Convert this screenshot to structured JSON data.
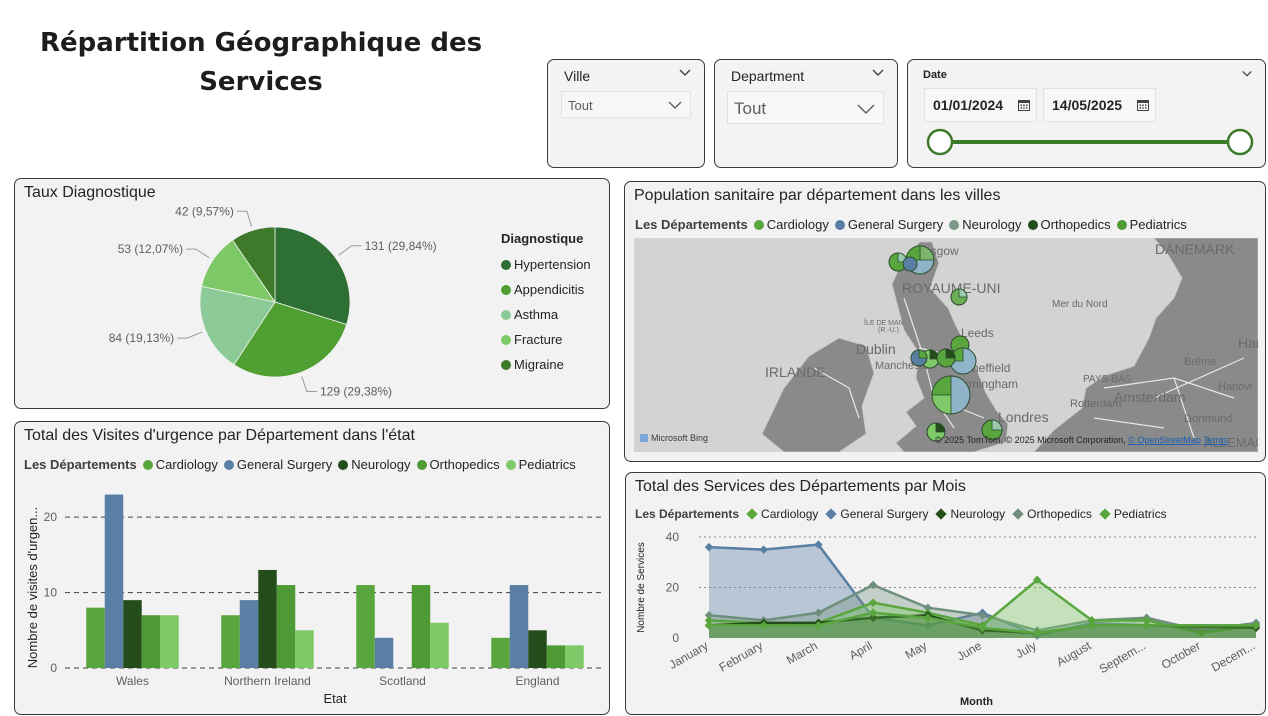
{
  "page": {
    "title": "Répartition Géographique des Services"
  },
  "slicers": {
    "ville": {
      "title": "Ville",
      "value": "Tout"
    },
    "department": {
      "title": "Department",
      "value": "Tout"
    },
    "date": {
      "title": "Date",
      "start": "01/01/2024",
      "end": "14/05/2025"
    }
  },
  "colors": {
    "cardiology": "#5aa63e",
    "general_surgery": "#5a7fa5",
    "neurology": "#254d1c",
    "orthopedics": "#4e9a35",
    "pediatrics": "#7fc968",
    "pie_hypertension": "#2e6f34",
    "pie_appendicitis": "#4f9f33",
    "pie_asthma": "#8ccb97",
    "pie_fracture": "#7dc867",
    "pie_migraine": "#3e7a2a"
  },
  "pie_card": {
    "title": "Taux Diagnostique",
    "legend_title": "Diagnostique",
    "legend": [
      "Hypertension",
      "Appendicitis",
      "Asthma",
      "Fracture",
      "Migraine"
    ]
  },
  "map_card": {
    "title": "Population sanitaire par département dans les villes",
    "legend_title": "Les Départements",
    "legend": [
      "Cardiology",
      "General Surgery",
      "Neurology",
      "Orthopedics",
      "Pediatrics"
    ],
    "places": {
      "danemark": "DANEMARK",
      "royaume_uni": "ROYAUME-UNI",
      "mer_du_nord": "Mer du Nord",
      "ile_de_man": "ÎLE DE MAN",
      "ile_de_man_sub": "(R.-U.)",
      "dublin": "Dublin",
      "irlande": "IRLANDE",
      "leeds": "Leeds",
      "sheffield": "Sheffield",
      "manchester": "Manchester",
      "birmingham": "Birmingham",
      "londres": "Londres",
      "glasgow": "Glasgow",
      "ham": "Ham",
      "breme": "Brême",
      "pays_bas": "PAYS-BAS",
      "amsterdam": "Amsterdam",
      "hanovre": "Hanovi",
      "rotterdam": "Rotterdam",
      "dortmund": "Dortmund",
      "allemagne": "ALLEMAGN"
    },
    "attribution": "© 2025 TomTom, © 2025 Microsoft Corporation, ",
    "attribution_osm": "© OpenStreetMap",
    "attribution_terms": "Terms",
    "bing": "Microsoft Bing"
  },
  "bar_card": {
    "title": "Total des Visites d'urgence par Département dans l'état",
    "legend_title": "Les Départements",
    "legend": [
      "Cardiology",
      "General Surgery",
      "Neurology",
      "Orthopedics",
      "Pediatrics"
    ],
    "ylabel": "Nombre de visites d'urgen...",
    "xlabel": "Etat",
    "yticks": [
      "0",
      "10",
      "20"
    ]
  },
  "line_card": {
    "title": "Total des Services des Départements par Mois",
    "legend_title": "Les Départements",
    "legend": [
      "Cardiology",
      "General Surgery",
      "Neurology",
      "Orthopedics",
      "Pediatrics"
    ],
    "ylabel": "Nombre de Services",
    "xlabel": "Month",
    "yticks": [
      "0",
      "20",
      "40"
    ]
  },
  "chart_data": [
    {
      "type": "pie",
      "title": "Taux Diagnostique",
      "categories": [
        "Hypertension",
        "Appendicitis",
        "Asthma",
        "Fracture",
        "Migraine"
      ],
      "values": [
        131,
        129,
        84,
        53,
        42
      ],
      "labels": [
        "131 (29,84%)",
        "129 (29,38%)",
        "84 (19,13%)",
        "53 (12,07%)",
        "42 (9,57%)"
      ]
    },
    {
      "type": "bar",
      "title": "Total des Visites d'urgence par Département dans l'état",
      "categories": [
        "Wales",
        "Northern Ireland",
        "Scotland",
        "England"
      ],
      "xlabel": "Etat",
      "ylabel": "Nombre de visites d'urgen...",
      "ylim": [
        0,
        24
      ],
      "series": [
        {
          "name": "Cardiology",
          "values": [
            8,
            7,
            11,
            4
          ]
        },
        {
          "name": "General Surgery",
          "values": [
            23,
            9,
            4,
            11
          ]
        },
        {
          "name": "Neurology",
          "values": [
            9,
            13,
            null,
            5
          ]
        },
        {
          "name": "Orthopedics",
          "values": [
            7,
            11,
            11,
            3
          ]
        },
        {
          "name": "Pediatrics",
          "values": [
            7,
            5,
            6,
            3
          ]
        }
      ]
    },
    {
      "type": "area",
      "title": "Total des Services des Départements par Mois",
      "categories": [
        "January",
        "February",
        "March",
        "April",
        "May",
        "June",
        "July",
        "August",
        "Septem...",
        "October",
        "Decem..."
      ],
      "xlabel": "Month",
      "ylabel": "Nombre de Services",
      "ylim": [
        0,
        40
      ],
      "series": [
        {
          "name": "Cardiology",
          "values": [
            5,
            5,
            5,
            10,
            8,
            4,
            2,
            5,
            5,
            null,
            5
          ]
        },
        {
          "name": "General Surgery",
          "values": [
            36,
            35,
            37,
            8,
            5,
            10,
            1,
            6,
            5,
            null,
            5
          ]
        },
        {
          "name": "Neurology",
          "values": [
            5,
            6,
            6,
            8,
            9,
            3,
            2,
            5,
            5,
            null,
            4
          ]
        },
        {
          "name": "Orthopedics",
          "values": [
            9,
            7,
            10,
            21,
            12,
            9,
            3,
            7,
            8,
            3,
            6
          ]
        },
        {
          "name": "Pediatrics",
          "values": [
            7,
            6,
            6,
            14,
            10,
            5,
            23,
            7,
            7,
            2,
            5
          ]
        }
      ]
    }
  ]
}
